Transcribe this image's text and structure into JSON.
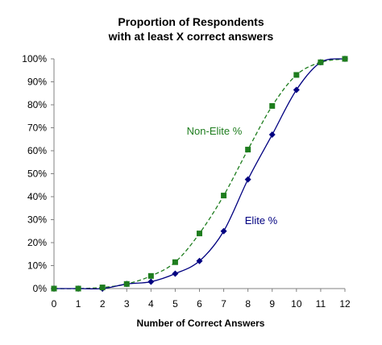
{
  "chart_data": {
    "type": "line",
    "title_lines": [
      "Proportion of Respondents",
      "with at least X correct answers"
    ],
    "xlabel": "Number of Correct Answers",
    "ylabel": "",
    "x": [
      0,
      1,
      2,
      3,
      4,
      5,
      6,
      7,
      8,
      9,
      10,
      11,
      12
    ],
    "x_tick_labels": [
      "0",
      "1",
      "2",
      "3",
      "4",
      "5",
      "6",
      "7",
      "8",
      "9",
      "10",
      "11",
      "12"
    ],
    "xlim": [
      0,
      12
    ],
    "ylim": [
      0,
      100
    ],
    "y_ticks": [
      0,
      10,
      20,
      30,
      40,
      50,
      60,
      70,
      80,
      90,
      100
    ],
    "y_tick_labels": [
      "0%",
      "10%",
      "20%",
      "30%",
      "40%",
      "50%",
      "60%",
      "70%",
      "80%",
      "90%",
      "100%"
    ],
    "grid": false,
    "series": [
      {
        "name": "Non-Elite %",
        "color": "#1e7d1e",
        "marker": "square",
        "line_style": "dashed",
        "values": [
          0,
          0,
          0.5,
          2,
          5.5,
          11.5,
          24,
          40.5,
          60.5,
          79.5,
          93,
          98.5,
          100
        ]
      },
      {
        "name": "Elite %",
        "color": "#000080",
        "marker": "diamond",
        "line_style": "solid",
        "values": [
          0,
          0,
          0,
          2,
          3,
          6.5,
          12,
          25,
          47.5,
          67,
          86.5,
          98.5,
          100
        ]
      }
    ]
  }
}
